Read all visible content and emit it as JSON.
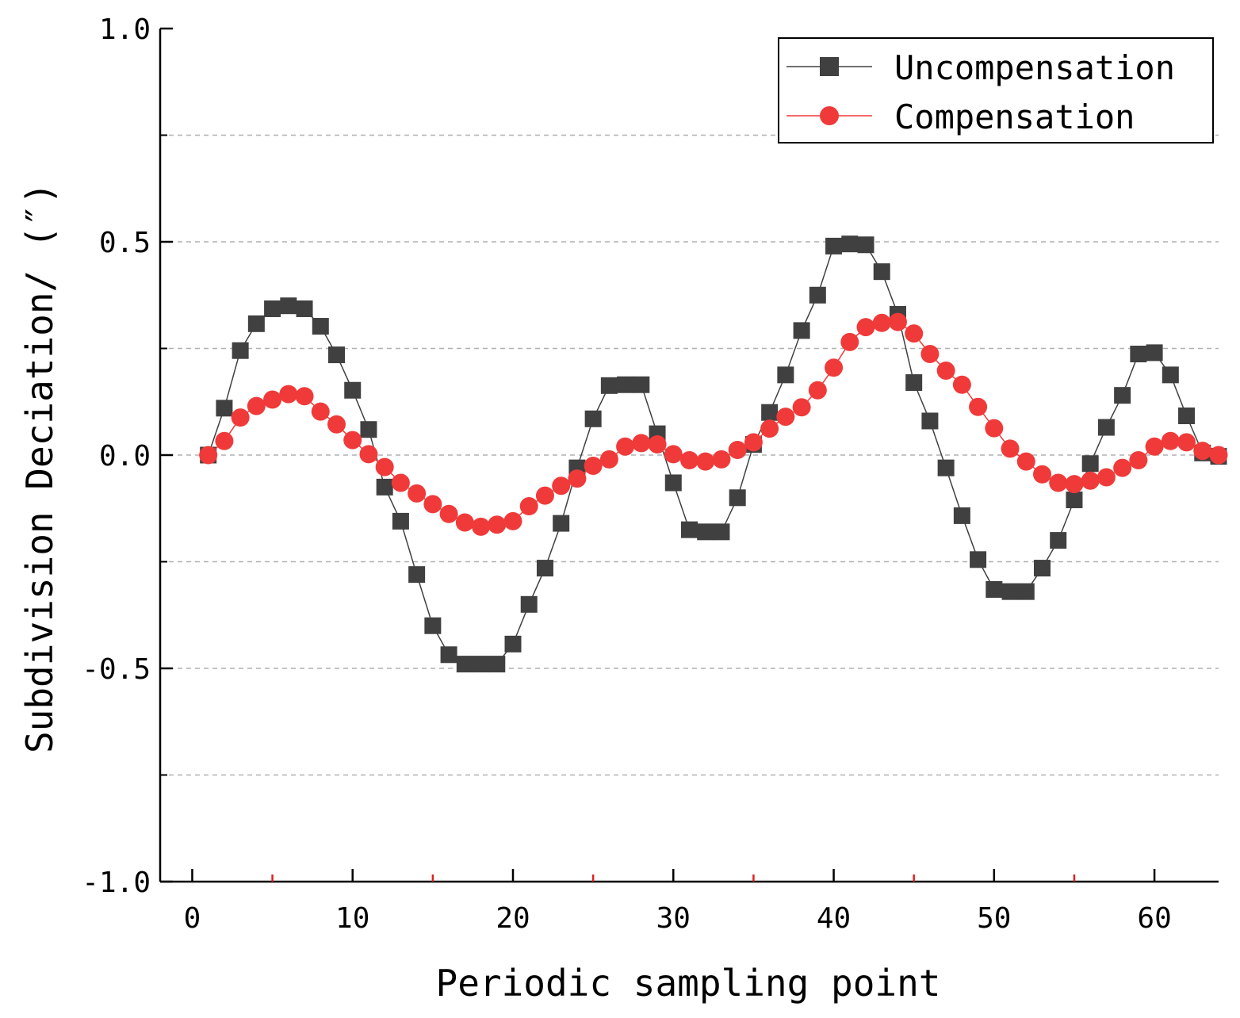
{
  "chart_data": {
    "type": "line",
    "xlabel": "Periodic sampling point",
    "ylabel": "Subdivision Deciation/ (″)",
    "xlim": [
      -2,
      64
    ],
    "ylim": [
      -1.0,
      1.0
    ],
    "xticks": [
      0,
      10,
      20,
      30,
      40,
      50,
      60
    ],
    "xtick_labels": [
      "0",
      "10",
      "20",
      "30",
      "40",
      "50",
      "60"
    ],
    "yticks": [
      -1.0,
      -0.5,
      0.0,
      0.5,
      1.0
    ],
    "ytick_labels": [
      "-1.0",
      "-0.5",
      "0.0",
      "0.5",
      "1.0"
    ],
    "ygrid": [
      -0.75,
      -0.5,
      -0.25,
      0.0,
      0.25,
      0.5,
      0.75
    ],
    "grid": "horizontal dashed",
    "legend_position": "top-right",
    "x": [
      1,
      2,
      3,
      4,
      5,
      6,
      7,
      8,
      9,
      10,
      11,
      12,
      13,
      14,
      15,
      16,
      17,
      18,
      19,
      20,
      21,
      22,
      23,
      24,
      25,
      26,
      27,
      28,
      29,
      30,
      31,
      32,
      33,
      34,
      35,
      36,
      37,
      38,
      39,
      40,
      41,
      42,
      43,
      44,
      45,
      46,
      47,
      48,
      49,
      50,
      51,
      52,
      53,
      54,
      55,
      56,
      57,
      58,
      59,
      60,
      61,
      62,
      63,
      64
    ],
    "series": [
      {
        "name": "Uncompensation",
        "color": "#404040",
        "marker": "square",
        "values": [
          0.0,
          0.11,
          0.245,
          0.308,
          0.343,
          0.35,
          0.343,
          0.302,
          0.235,
          0.152,
          0.06,
          -0.075,
          -0.155,
          -0.28,
          -0.4,
          -0.468,
          -0.49,
          -0.49,
          -0.49,
          -0.443,
          -0.35,
          -0.265,
          -0.16,
          -0.03,
          0.085,
          0.163,
          0.165,
          0.165,
          0.05,
          -0.065,
          -0.175,
          -0.18,
          -0.18,
          -0.1,
          0.025,
          0.1,
          0.188,
          0.292,
          0.375,
          0.49,
          0.495,
          0.493,
          0.43,
          0.33,
          0.17,
          0.08,
          -0.03,
          -0.142,
          -0.245,
          -0.315,
          -0.32,
          -0.32,
          -0.265,
          -0.2,
          -0.105,
          -0.02,
          0.065,
          0.14,
          0.237,
          0.24,
          0.188,
          0.092,
          0.005,
          -0.003
        ]
      },
      {
        "name": "Compensation",
        "color": "#f03a3a",
        "marker": "circle",
        "values": [
          0.0,
          0.033,
          0.088,
          0.115,
          0.13,
          0.143,
          0.138,
          0.102,
          0.072,
          0.035,
          0.002,
          -0.028,
          -0.065,
          -0.09,
          -0.115,
          -0.138,
          -0.158,
          -0.168,
          -0.163,
          -0.155,
          -0.12,
          -0.095,
          -0.072,
          -0.055,
          -0.025,
          -0.01,
          0.02,
          0.028,
          0.025,
          0.002,
          -0.012,
          -0.015,
          -0.01,
          0.012,
          0.03,
          0.062,
          0.09,
          0.112,
          0.152,
          0.205,
          0.265,
          0.3,
          0.31,
          0.312,
          0.285,
          0.237,
          0.198,
          0.165,
          0.113,
          0.063,
          0.015,
          -0.015,
          -0.045,
          -0.065,
          -0.068,
          -0.06,
          -0.052,
          -0.03,
          -0.012,
          0.02,
          0.033,
          0.03,
          0.01,
          0.0
        ]
      }
    ]
  }
}
